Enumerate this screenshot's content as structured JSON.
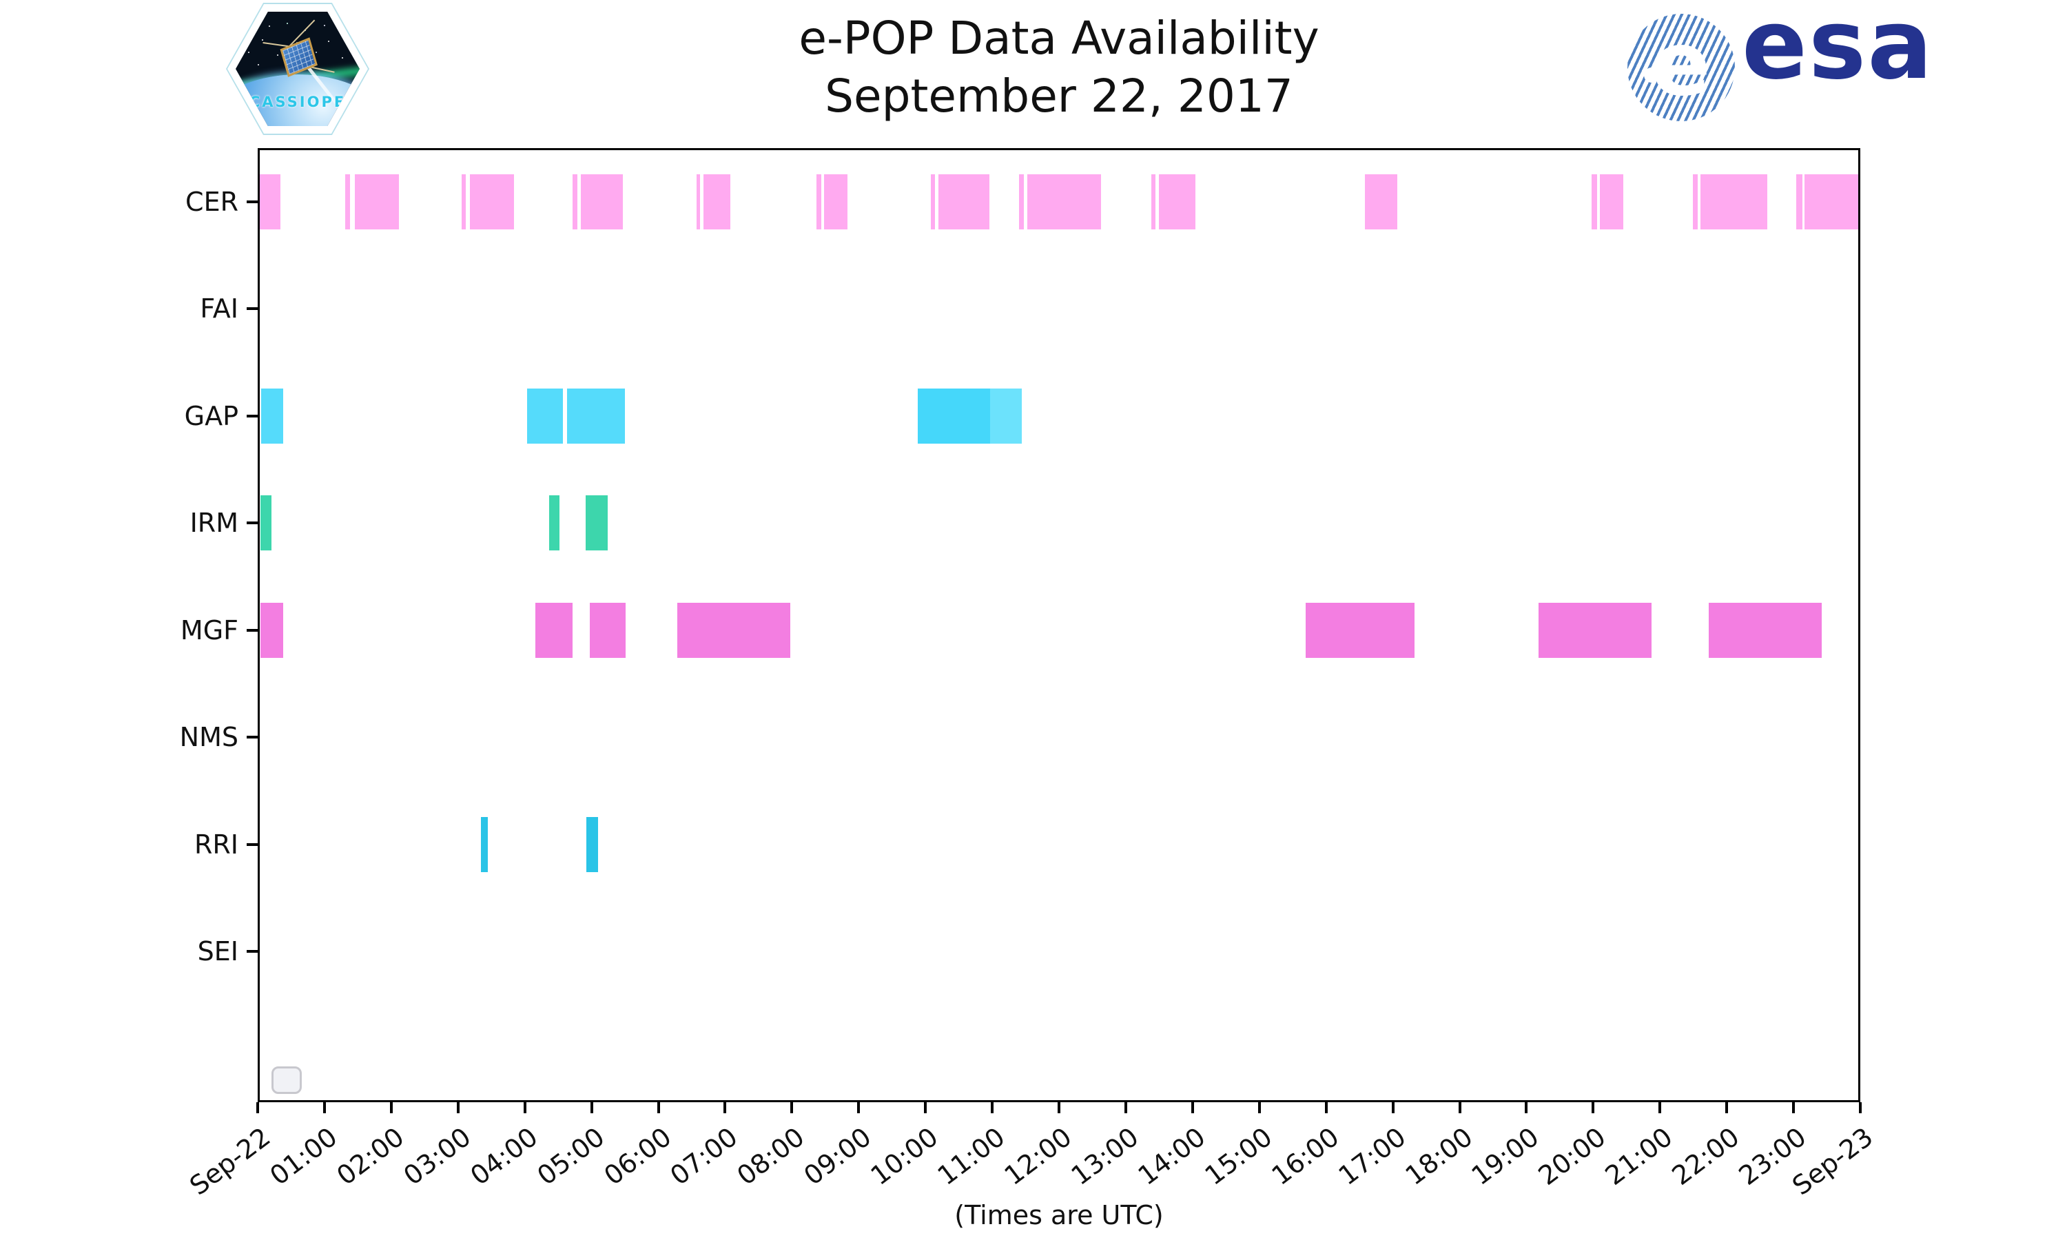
{
  "figure": {
    "title_line1": "e-POP Data Availability",
    "title_line2": "September 22, 2017",
    "cassiope_patch_text": "CASSIOPE",
    "esa_logo_text": "esa",
    "esa_globe_letter": "e"
  },
  "chart_data": {
    "type": "timeline",
    "title": "e-POP Data Availability September 22, 2017",
    "xlabel": "(Times are UTC)",
    "ylabels": [
      "CER",
      "FAI",
      "GAP",
      "IRM",
      "MGF",
      "NMS",
      "RRI",
      "SEI"
    ],
    "x_axis": {
      "min_hour": 0,
      "max_hour": 24,
      "tick_hours": [
        0,
        1,
        2,
        3,
        4,
        5,
        6,
        7,
        8,
        9,
        10,
        11,
        12,
        13,
        14,
        15,
        16,
        17,
        18,
        19,
        20,
        21,
        22,
        23,
        24
      ],
      "tick_labels": [
        "Sep-22",
        "01:00",
        "02:00",
        "03:00",
        "04:00",
        "05:00",
        "06:00",
        "07:00",
        "08:00",
        "09:00",
        "10:00",
        "11:00",
        "12:00",
        "13:00",
        "14:00",
        "15:00",
        "16:00",
        "17:00",
        "18:00",
        "19:00",
        "20:00",
        "21:00",
        "22:00",
        "23:00",
        "Sep-23"
      ]
    },
    "series": [
      {
        "name": "CER",
        "color": "#ffaaf0",
        "intervals": [
          {
            "start": 0.0,
            "end": 0.34
          },
          {
            "start": 1.31,
            "end": 1.38
          },
          {
            "start": 1.45,
            "end": 2.11
          },
          {
            "start": 3.05,
            "end": 3.12
          },
          {
            "start": 3.18,
            "end": 3.84
          },
          {
            "start": 4.71,
            "end": 4.79
          },
          {
            "start": 4.84,
            "end": 5.47
          },
          {
            "start": 6.57,
            "end": 6.63
          },
          {
            "start": 6.68,
            "end": 7.08
          },
          {
            "start": 8.37,
            "end": 8.44
          },
          {
            "start": 8.48,
            "end": 8.83
          },
          {
            "start": 10.08,
            "end": 10.14
          },
          {
            "start": 10.19,
            "end": 10.96
          },
          {
            "start": 11.4,
            "end": 11.47
          },
          {
            "start": 11.53,
            "end": 12.63
          },
          {
            "start": 13.38,
            "end": 13.45
          },
          {
            "start": 13.5,
            "end": 14.04
          },
          {
            "start": 16.58,
            "end": 17.07
          },
          {
            "start": 19.98,
            "end": 20.06
          },
          {
            "start": 20.1,
            "end": 20.45
          },
          {
            "start": 21.49,
            "end": 21.57
          },
          {
            "start": 21.61,
            "end": 22.61
          },
          {
            "start": 23.04,
            "end": 23.13
          },
          {
            "start": 23.16,
            "end": 23.97
          }
        ]
      },
      {
        "name": "FAI",
        "color": "#cccccc",
        "intervals": []
      },
      {
        "name": "GAP",
        "color": "#55dbfb",
        "intervals": [
          {
            "start": 0.05,
            "end": 0.38
          },
          {
            "start": 4.03,
            "end": 4.57
          },
          {
            "start": 4.63,
            "end": 5.5
          },
          {
            "start": 9.88,
            "end": 10.97,
            "color": "#45d7fa"
          },
          {
            "start": 10.97,
            "end": 11.44,
            "color": "#6ce2fc"
          }
        ]
      },
      {
        "name": "IRM",
        "color": "#3dd6ac",
        "intervals": [
          {
            "start": 0.04,
            "end": 0.21
          },
          {
            "start": 4.36,
            "end": 4.52
          },
          {
            "start": 4.91,
            "end": 5.24
          }
        ]
      },
      {
        "name": "MGF",
        "color": "#f37ee1",
        "intervals": [
          {
            "start": 0.04,
            "end": 0.38
          },
          {
            "start": 4.16,
            "end": 4.72
          },
          {
            "start": 4.97,
            "end": 5.51
          },
          {
            "start": 6.28,
            "end": 7.98
          },
          {
            "start": 15.69,
            "end": 17.32
          },
          {
            "start": 19.18,
            "end": 20.87
          },
          {
            "start": 21.73,
            "end": 23.42
          }
        ]
      },
      {
        "name": "NMS",
        "color": "#cccccc",
        "intervals": []
      },
      {
        "name": "RRI",
        "color": "#2ac4e7",
        "intervals": [
          {
            "start": 3.34,
            "end": 3.45
          },
          {
            "start": 4.92,
            "end": 5.1
          }
        ]
      },
      {
        "name": "SEI",
        "color": "#cccccc",
        "intervals": []
      }
    ]
  }
}
